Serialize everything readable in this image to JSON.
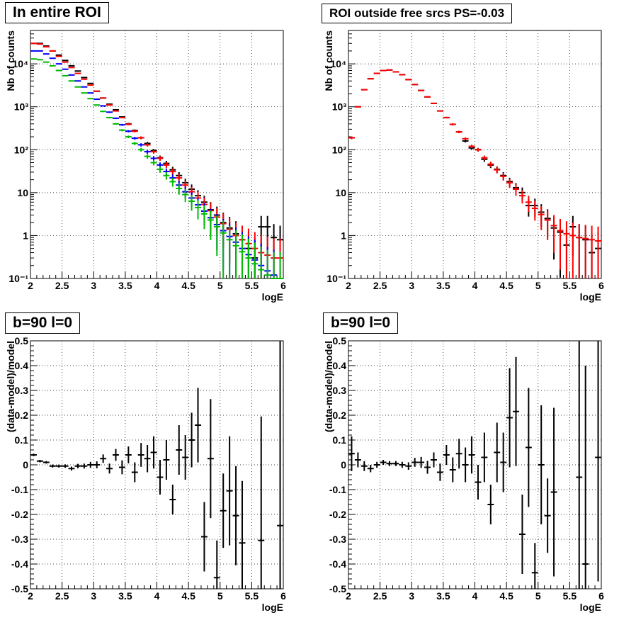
{
  "chart_data": [
    {
      "type": "scatter",
      "title": "In entire ROI",
      "xlabel": "logE",
      "ylabel": "Nb of counts",
      "xlim": [
        2,
        6
      ],
      "ylim": [
        0.1,
        60000
      ],
      "yscale": "log",
      "grid": true,
      "xticks": [
        "2",
        "2.5",
        "3",
        "3.5",
        "4",
        "4.5",
        "5",
        "5.5",
        "6"
      ],
      "yticks": [
        "10⁻¹",
        "1",
        "10",
        "10²",
        "10³",
        "10⁴"
      ],
      "series": [
        {
          "color": "#000000",
          "style": "cross",
          "x": [
            2.05,
            2.15,
            2.25,
            2.35,
            2.45,
            2.55,
            2.65,
            2.75,
            2.85,
            2.95,
            3.05,
            3.15,
            3.25,
            3.35,
            3.45,
            3.55,
            3.65,
            3.75,
            3.85,
            3.95,
            4.05,
            4.15,
            4.25,
            4.35,
            4.45,
            4.55,
            4.65,
            4.75,
            4.85,
            4.95,
            5.05,
            5.15,
            5.25,
            5.35,
            5.45,
            5.55,
            5.65,
            5.75,
            5.85,
            5.95
          ],
          "y": [
            30000,
            30000,
            26000,
            20000,
            16000,
            12000,
            9000,
            6800,
            4800,
            3500,
            2300,
            1600,
            1150,
            850,
            580,
            400,
            280,
            190,
            140,
            95,
            65,
            48,
            34,
            25,
            17,
            12,
            8.5,
            6,
            4,
            3,
            2,
            1.5,
            1.1,
            0.8,
            0.5,
            0.3,
            1.6,
            1.6,
            0.9,
            0.8
          ]
        },
        {
          "color": "#ff0000",
          "style": "cross",
          "x": [
            2.05,
            2.15,
            2.25,
            2.35,
            2.45,
            2.55,
            2.65,
            2.75,
            2.85,
            2.95,
            3.05,
            3.15,
            3.25,
            3.35,
            3.45,
            3.55,
            3.65,
            3.75,
            3.85,
            3.95,
            4.05,
            4.15,
            4.25,
            4.35,
            4.45,
            4.55,
            4.65,
            4.75,
            4.85,
            4.95,
            5.05,
            5.15,
            5.25,
            5.35,
            5.45,
            5.55,
            5.65,
            5.75,
            5.85,
            5.95
          ],
          "y": [
            30000,
            29000,
            25000,
            20000,
            15000,
            11000,
            8200,
            6000,
            4400,
            3200,
            2300,
            1600,
            1100,
            800,
            560,
            390,
            270,
            190,
            130,
            90,
            63,
            44,
            31,
            22,
            15,
            10.5,
            7.5,
            5.3,
            3.8,
            2.7,
            1.9,
            1.4,
            1.0,
            0.8,
            0.65,
            0.5,
            0.4,
            0.35,
            0.3,
            0.3
          ]
        },
        {
          "color": "#0000ff",
          "style": "cross",
          "x": [
            2.05,
            2.15,
            2.25,
            2.35,
            2.45,
            2.55,
            2.65,
            2.75,
            2.85,
            2.95,
            3.05,
            3.15,
            3.25,
            3.35,
            3.45,
            3.55,
            3.65,
            3.75,
            3.85,
            3.95,
            4.05,
            4.15,
            4.25,
            4.35,
            4.45,
            4.55,
            4.65,
            4.75,
            4.85,
            4.95,
            5.05,
            5.15,
            5.25,
            5.35,
            5.45,
            5.55,
            5.65,
            5.75,
            5.85,
            5.95
          ],
          "y": [
            20000,
            20000,
            17000,
            13500,
            10000,
            7500,
            5500,
            4000,
            2900,
            2100,
            1500,
            1050,
            750,
            540,
            380,
            270,
            185,
            130,
            90,
            63,
            44,
            31,
            22,
            15,
            10.5,
            7.5,
            5.2,
            3.7,
            2.6,
            1.8,
            1.3,
            0.95,
            0.7,
            0.5,
            0.36,
            0.27,
            0.2,
            0.15,
            0.12,
            0.1
          ]
        },
        {
          "color": "#00bb00",
          "style": "cross",
          "x": [
            2.05,
            2.15,
            2.25,
            2.35,
            2.45,
            2.55,
            2.65,
            2.75,
            2.85,
            2.95,
            3.05,
            3.15,
            3.25,
            3.35,
            3.45,
            3.55,
            3.65,
            3.75,
            3.85,
            3.95,
            4.05,
            4.15,
            4.25,
            4.35,
            4.45,
            4.55,
            4.65,
            4.75,
            4.85,
            4.95,
            5.05,
            5.15,
            5.25,
            5.35,
            5.45,
            5.55,
            5.65,
            5.75,
            5.85,
            5.95
          ],
          "y": [
            13000,
            12500,
            11000,
            9000,
            7000,
            5300,
            4000,
            2900,
            2100,
            1550,
            1100,
            780,
            560,
            400,
            285,
            200,
            140,
            100,
            70,
            50,
            35,
            25,
            18,
            12.5,
            9,
            6.3,
            4.5,
            3.2,
            2.3,
            1.6,
            1.15,
            0.8,
            0.58,
            0.42,
            0.3,
            0.22,
            0.16,
            0.12,
            0.1,
            0.1
          ]
        }
      ]
    },
    {
      "type": "scatter",
      "title": "ROI outside free srcs PS=-0.03",
      "xlabel": "logE",
      "ylabel": "Nb of counts",
      "xlim": [
        2,
        6
      ],
      "ylim": [
        0.1,
        60000
      ],
      "yscale": "log",
      "grid": true,
      "xticks": [
        "2",
        "2.5",
        "3",
        "3.5",
        "4",
        "4.5",
        "5",
        "5.5",
        "6"
      ],
      "yticks": [
        "10⁻¹",
        "1",
        "10",
        "10²",
        "10³",
        "10⁴"
      ],
      "series": [
        {
          "color": "#000000",
          "style": "cross",
          "x": [
            2.05,
            2.15,
            2.25,
            2.35,
            2.45,
            2.55,
            2.65,
            2.75,
            2.85,
            2.95,
            3.05,
            3.15,
            3.25,
            3.35,
            3.45,
            3.55,
            3.65,
            3.75,
            3.85,
            3.95,
            4.05,
            4.15,
            4.25,
            4.35,
            4.45,
            4.55,
            4.65,
            4.75,
            4.85,
            4.95,
            5.05,
            5.15,
            5.25,
            5.35,
            5.45,
            5.55,
            5.65,
            5.75,
            5.85,
            5.95
          ],
          "y": [
            190,
            1000,
            2500,
            4500,
            6000,
            7000,
            7200,
            6500,
            5600,
            4300,
            3300,
            2400,
            1700,
            1200,
            800,
            560,
            390,
            260,
            160,
            110,
            100,
            60,
            44,
            35,
            25,
            18,
            13,
            10,
            5,
            5,
            3.5,
            2.5,
            1.5,
            1.2,
            0.6,
            1.6,
            0.9,
            0.8,
            0.4,
            0.5
          ]
        },
        {
          "color": "#ff0000",
          "style": "cross",
          "x": [
            2.05,
            2.15,
            2.25,
            2.35,
            2.45,
            2.55,
            2.65,
            2.75,
            2.85,
            2.95,
            3.05,
            3.15,
            3.25,
            3.35,
            3.45,
            3.55,
            3.65,
            3.75,
            3.85,
            3.95,
            4.05,
            4.15,
            4.25,
            4.35,
            4.45,
            4.55,
            4.65,
            4.75,
            4.85,
            4.95,
            5.05,
            5.15,
            5.25,
            5.35,
            5.45,
            5.55,
            5.65,
            5.75,
            5.85,
            5.95
          ],
          "y": [
            190,
            1000,
            2500,
            4500,
            6000,
            7000,
            7200,
            6500,
            5600,
            4300,
            3300,
            2400,
            1700,
            1200,
            800,
            560,
            390,
            260,
            180,
            120,
            100,
            65,
            46,
            34,
            24,
            17,
            12,
            8.5,
            6,
            4.3,
            3.1,
            2.3,
            1.7,
            1.3,
            1.1,
            1.0,
            0.9,
            0.85,
            0.8,
            0.75
          ]
        }
      ]
    },
    {
      "type": "scatter",
      "title": "b=90 l=0",
      "xlabel": "logE",
      "ylabel": "(data-model)/model",
      "xlim": [
        2,
        6
      ],
      "ylim": [
        -0.5,
        0.5
      ],
      "grid": true,
      "xticks": [
        "2",
        "2.5",
        "3",
        "3.5",
        "4",
        "4.5",
        "5",
        "5.5",
        "6"
      ],
      "yticks": [
        "-0.5",
        "-0.4",
        "-0.3",
        "-0.2",
        "-0.1",
        "0",
        "0.1",
        "0.2",
        "0.3",
        "0.4",
        "0.5"
      ],
      "series": [
        {
          "color": "#000000",
          "style": "errorbar",
          "x": [
            2.05,
            2.15,
            2.25,
            2.35,
            2.45,
            2.55,
            2.65,
            2.75,
            2.85,
            2.95,
            3.05,
            3.15,
            3.25,
            3.35,
            3.45,
            3.55,
            3.65,
            3.75,
            3.85,
            3.95,
            4.05,
            4.15,
            4.25,
            4.35,
            4.45,
            4.55,
            4.65,
            4.75,
            4.85,
            4.95,
            5.05,
            5.15,
            5.25,
            5.35,
            5.65,
            5.95
          ],
          "y": [
            0.04,
            0.015,
            0.01,
            -0.005,
            -0.005,
            -0.005,
            -0.015,
            -0.005,
            -0.005,
            0.0,
            0.0,
            0.025,
            -0.015,
            0.04,
            -0.01,
            0.04,
            -0.03,
            0.04,
            0.025,
            0.05,
            -0.05,
            0.02,
            -0.14,
            0.06,
            0.03,
            0.1,
            0.16,
            -0.29,
            0.025,
            -0.455,
            -0.185,
            -0.105,
            -0.205,
            -0.315,
            -0.305,
            -0.245
          ],
          "err": [
            0.005,
            0.005,
            0.005,
            0.006,
            0.006,
            0.007,
            0.008,
            0.009,
            0.01,
            0.012,
            0.014,
            0.017,
            0.02,
            0.024,
            0.028,
            0.034,
            0.04,
            0.048,
            0.055,
            0.065,
            0.07,
            0.08,
            0.06,
            0.1,
            0.09,
            0.11,
            0.15,
            0.14,
            0.24,
            0.15,
            0.15,
            0.22,
            0.2,
            0.25,
            0.5,
            0.75
          ]
        }
      ]
    },
    {
      "type": "scatter",
      "title": "b=90 l=0",
      "xlabel": "logE",
      "ylabel": "(data-model)/model",
      "xlim": [
        2,
        6
      ],
      "ylim": [
        -0.5,
        0.5
      ],
      "grid": true,
      "xticks": [
        "2",
        "2.5",
        "3",
        "3.5",
        "4",
        "4.5",
        "5",
        "5.5",
        "6"
      ],
      "yticks": [
        "-0.5",
        "-0.4",
        "-0.3",
        "-0.2",
        "-0.1",
        "0",
        "0.1",
        "0.2",
        "0.3",
        "0.4",
        "0.5"
      ],
      "series": [
        {
          "color": "#000000",
          "style": "errorbar",
          "x": [
            2.05,
            2.15,
            2.25,
            2.35,
            2.45,
            2.55,
            2.65,
            2.75,
            2.85,
            2.95,
            3.05,
            3.15,
            3.25,
            3.35,
            3.45,
            3.55,
            3.65,
            3.75,
            3.85,
            3.95,
            4.05,
            4.15,
            4.25,
            4.35,
            4.45,
            4.55,
            4.65,
            4.75,
            4.85,
            4.95,
            5.05,
            5.15,
            5.25,
            5.65,
            5.75,
            5.95
          ],
          "y": [
            0.045,
            0.02,
            -0.005,
            -0.015,
            0.0,
            0.01,
            0.005,
            0.005,
            0.0,
            -0.005,
            0.01,
            0.01,
            -0.01,
            0.02,
            -0.03,
            0.04,
            -0.02,
            0.045,
            0.0,
            0.04,
            -0.07,
            0.03,
            -0.16,
            0.05,
            0.01,
            0.19,
            0.215,
            -0.28,
            0.07,
            -0.435,
            0.0,
            -0.205,
            -0.11,
            -0.05,
            -0.4,
            0.03
          ],
          "err": [
            0.07,
            0.03,
            0.02,
            0.015,
            0.012,
            0.01,
            0.01,
            0.01,
            0.012,
            0.015,
            0.018,
            0.022,
            0.026,
            0.03,
            0.035,
            0.04,
            0.05,
            0.06,
            0.07,
            0.075,
            0.07,
            0.1,
            0.08,
            0.12,
            0.12,
            0.2,
            0.22,
            0.16,
            0.24,
            0.12,
            0.24,
            0.15,
            0.34,
            0.7,
            0.8,
            0.5
          ]
        }
      ]
    }
  ]
}
